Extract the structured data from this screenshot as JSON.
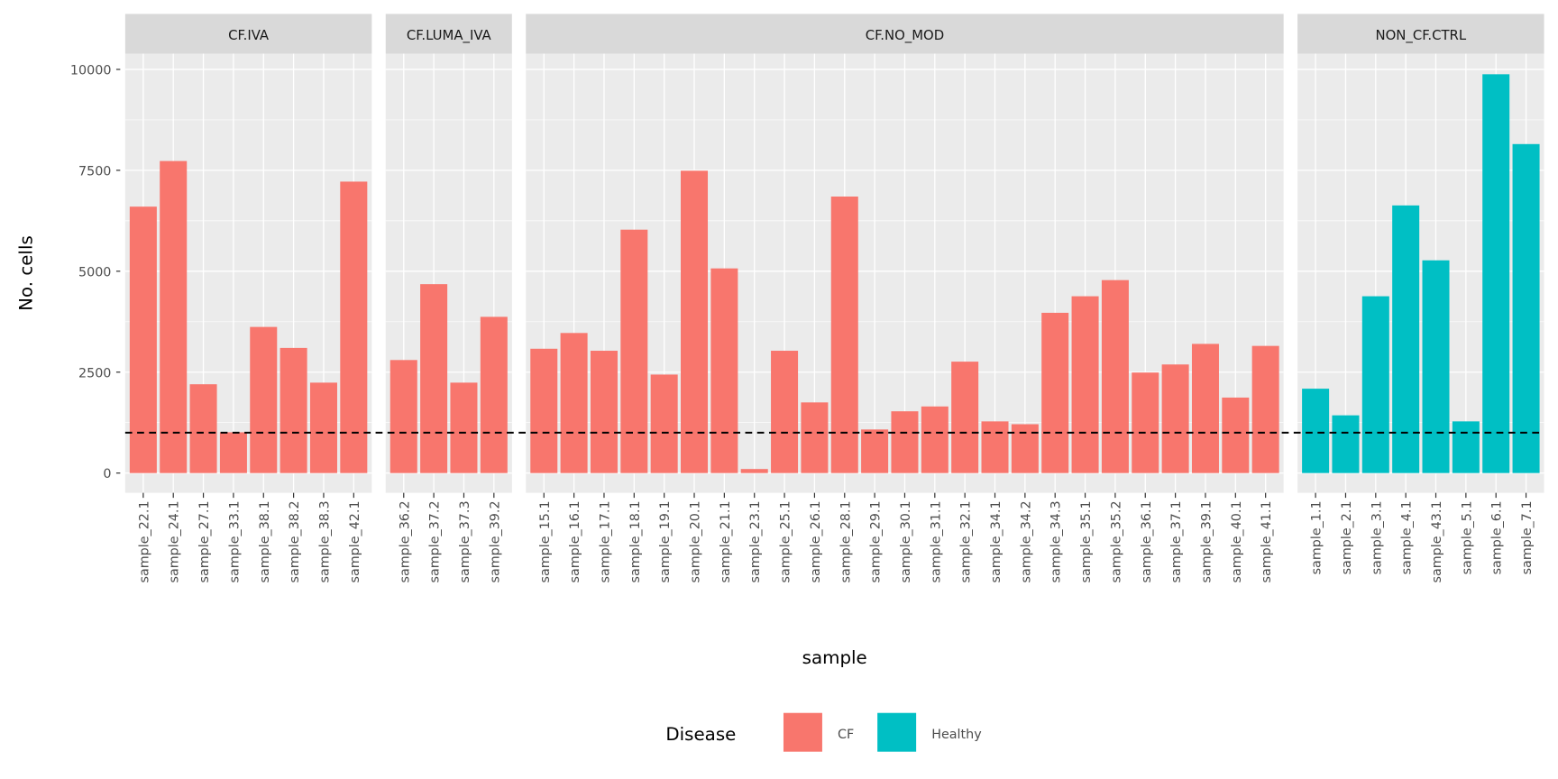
{
  "chart_data": {
    "type": "bar",
    "x_label": "sample",
    "y_label": "No. cells",
    "legend_title": "Disease",
    "ylim": [
      -490,
      10390
    ],
    "yticks": [
      0,
      2500,
      5000,
      7500,
      10000
    ],
    "hline": 1000,
    "grid": true,
    "facets": [
      {
        "title": "CF.IVA",
        "categories": [
          "sample_22.1",
          "sample_24.1",
          "sample_27.1",
          "sample_33.1",
          "sample_38.1",
          "sample_38.2",
          "sample_38.3",
          "sample_42.1"
        ],
        "series": [
          {
            "name": "CF",
            "color": "#f8766d",
            "values": [
              6600,
              7730,
              2200,
              1010,
              3620,
              3100,
              2240,
              7220
            ]
          }
        ]
      },
      {
        "title": "CF.LUMA_IVA",
        "categories": [
          "sample_36.2",
          "sample_37.2",
          "sample_37.3",
          "sample_39.2"
        ],
        "series": [
          {
            "name": "CF",
            "color": "#f8766d",
            "values": [
              2800,
              4680,
              2240,
              3870
            ]
          }
        ]
      },
      {
        "title": "CF.NO_MOD",
        "categories": [
          "sample_15.1",
          "sample_16.1",
          "sample_17.1",
          "sample_18.1",
          "sample_19.1",
          "sample_20.1",
          "sample_21.1",
          "sample_23.1",
          "sample_25.1",
          "sample_26.1",
          "sample_28.1",
          "sample_29.1",
          "sample_30.1",
          "sample_31.1",
          "sample_32.1",
          "sample_34.1",
          "sample_34.2",
          "sample_34.3",
          "sample_35.1",
          "sample_35.2",
          "sample_36.1",
          "sample_37.1",
          "sample_39.1",
          "sample_40.1",
          "sample_41.1"
        ],
        "series": [
          {
            "name": "CF",
            "color": "#f8766d",
            "values": [
              3080,
              3470,
              3030,
              6030,
              2440,
              7490,
              5070,
              100,
              3030,
              1750,
              6850,
              1080,
              1530,
              1650,
              2760,
              1280,
              1210,
              3970,
              4380,
              4780,
              2490,
              2690,
              3200,
              1870,
              3150
            ]
          }
        ]
      },
      {
        "title": "NON_CF.CTRL",
        "categories": [
          "sample_1.1",
          "sample_2.1",
          "sample_3.1",
          "sample_4.1",
          "sample_43.1",
          "sample_5.1",
          "sample_6.1",
          "sample_7.1"
        ],
        "series": [
          {
            "name": "Healthy",
            "color": "#00bfc4",
            "values": [
              2090,
              1430,
              4380,
              6630,
              5270,
              1280,
              9880,
              8150
            ]
          }
        ]
      }
    ]
  }
}
